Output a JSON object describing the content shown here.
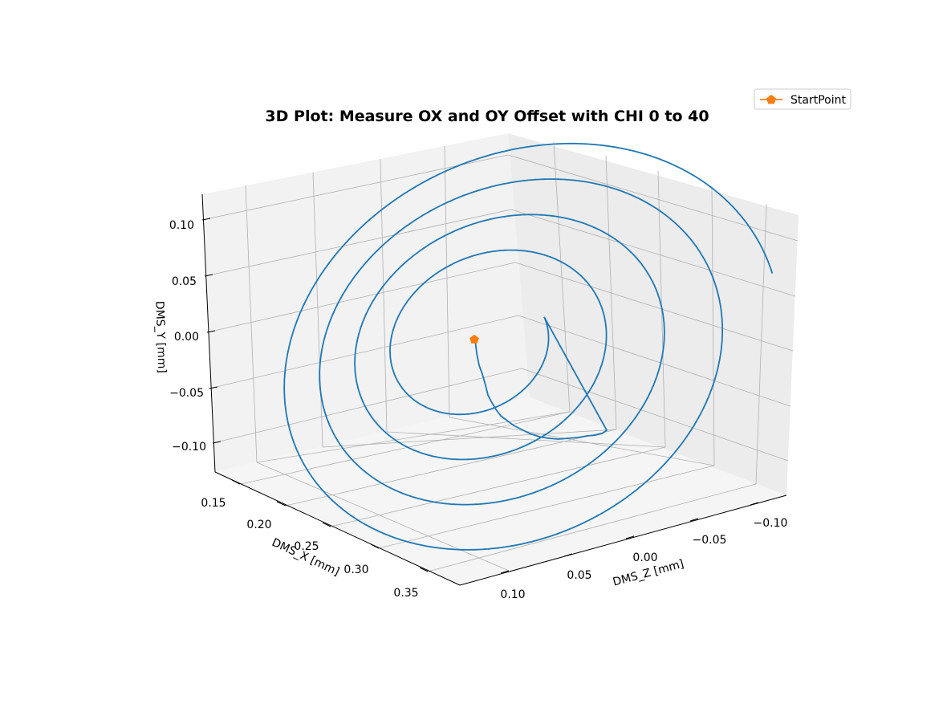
{
  "chart_data": {
    "type": "line",
    "title": "3D Plot: Measure OX and OY Offset with CHI 0 to 40",
    "xlabel": "DMS_X [mm]",
    "ylabel": "DMS_Y [mm]",
    "zlabel": "DMS_Z [mm]",
    "x_ticks": [
      "0.15",
      "0.20",
      "0.25",
      "0.30",
      "0.35"
    ],
    "y_ticks": [
      "0.10",
      "0.05",
      "0.00",
      "−0.05",
      "−0.10"
    ],
    "z_ticks": [
      "0.10",
      "0.05",
      "0.00",
      "−0.05",
      "−0.10"
    ],
    "grid": true,
    "legend_position": "top-right",
    "start_point": {
      "name": "StartPoint",
      "color": "#ff7f0e",
      "x": 0.25,
      "y": 0.0,
      "z": 0.0
    },
    "trajectory_color": "#1f77b4",
    "spiral_loops": [
      {
        "center": [
          0.255,
          -0.01,
          0.01
        ],
        "radius": 0.075
      },
      {
        "center": [
          0.26,
          -0.015,
          0.015
        ],
        "radius": 0.115
      },
      {
        "center": [
          0.265,
          -0.02,
          0.02
        ],
        "radius": 0.135
      },
      {
        "center": [
          0.27,
          -0.02,
          0.02
        ],
        "radius": 0.145
      }
    ]
  },
  "legend": {
    "label": "StartPoint"
  }
}
